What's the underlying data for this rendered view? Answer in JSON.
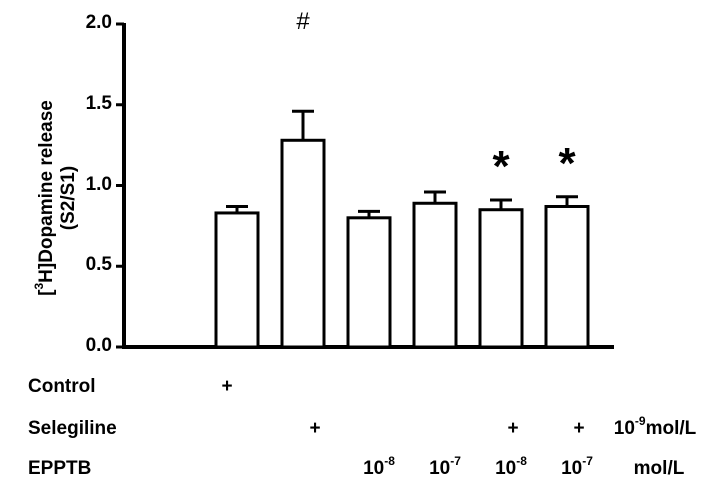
{
  "chart_data": {
    "type": "bar",
    "title": "",
    "xlabel": "",
    "ylabel": "[3H]Dopamine release (S2/S1)",
    "ylim": [
      0,
      2.0
    ],
    "yticks": [
      "0.0",
      "0.5",
      "1.0",
      "1.5",
      "2.0"
    ],
    "grid": false,
    "categories": [
      "Control",
      "Selegiline",
      "EPPTB 10^-8",
      "EPPTB 10^-7",
      "Selegiline + EPPTB 10^-8",
      "Selegiline + EPPTB 10^-7"
    ],
    "values": [
      0.83,
      1.28,
      0.8,
      0.89,
      0.85,
      0.87
    ],
    "errors": [
      0.04,
      0.18,
      0.04,
      0.07,
      0.06,
      0.06
    ],
    "annotations": [
      "",
      "#",
      "",
      "",
      "*",
      "*"
    ]
  },
  "ylabel": {
    "line1_pre": "[",
    "sup": "3",
    "line1_post": "H]Dopamine release",
    "line2": "(S2/S1)"
  },
  "rows": {
    "control": {
      "label": "Control",
      "cells": [
        "+",
        "",
        "",
        "",
        "",
        ""
      ]
    },
    "selegiline": {
      "label": "Selegiline",
      "cells": [
        "",
        "+",
        "",
        "",
        "+",
        "+"
      ],
      "unit_base": "10",
      "unit_exp": "-9",
      "unit_text": "mol/L"
    },
    "epptb": {
      "label": "EPPTB",
      "cells_base": [
        "",
        "",
        "10",
        "10",
        "10",
        "10"
      ],
      "cells_exp": [
        "",
        "",
        "-8",
        "-7",
        "-8",
        "-7"
      ],
      "unit_text": "mol/L"
    }
  }
}
